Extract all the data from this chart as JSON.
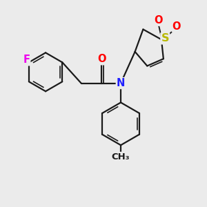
{
  "bg_color": "#ebebeb",
  "bond_color": "#1a1a1a",
  "bond_width": 1.6,
  "atom_colors": {
    "F": "#ee00ee",
    "O": "#ff0000",
    "N": "#2020ff",
    "S": "#b8b800",
    "C": "#1a1a1a"
  },
  "font_size": 10.5
}
